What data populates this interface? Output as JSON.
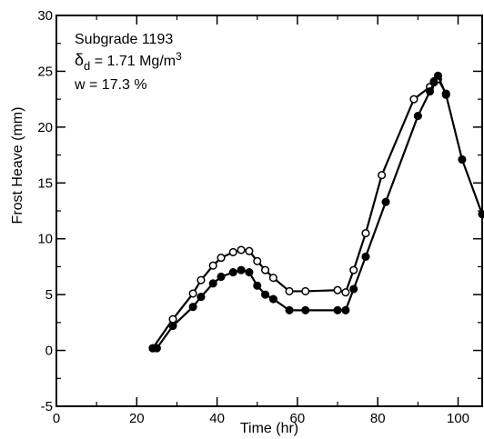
{
  "chart_data": {
    "type": "line",
    "title": "",
    "xlabel": "Time (hr)",
    "ylabel": "Frost Heave (mm)",
    "xlim": [
      0,
      106
    ],
    "ylim": [
      -5,
      30
    ],
    "x_ticks": [
      0,
      20,
      40,
      60,
      80,
      100
    ],
    "y_ticks": [
      -5,
      0,
      5,
      10,
      15,
      20,
      25,
      30
    ],
    "x_tick_labels": [
      "0",
      "20",
      "40",
      "60",
      "80",
      "100"
    ],
    "y_tick_labels": [
      "-5",
      "0",
      "5",
      "10",
      "15",
      "20",
      "25",
      "30"
    ],
    "grid": false,
    "legend": "none",
    "annotations": {
      "line1": "Subgrade 1193",
      "line2_symbol": "δ",
      "line2_sub": "d",
      "line2_text": " = 1.71 Mg/m",
      "line2_sup": "3",
      "line3": "w = 17.3 %"
    },
    "series": [
      {
        "marker": "open-circle",
        "x": [
          24,
          29,
          34,
          36,
          39,
          41,
          44,
          46,
          48,
          50,
          52,
          54,
          58,
          62,
          70,
          72,
          74,
          77,
          81,
          89,
          93,
          94,
          95,
          97
        ],
        "y": [
          0.2,
          2.8,
          5.1,
          6.3,
          7.6,
          8.3,
          8.8,
          9.0,
          8.9,
          8.0,
          7.2,
          6.5,
          5.3,
          5.3,
          5.4,
          5.2,
          7.2,
          10.5,
          15.7,
          22.5,
          23.6,
          24.1,
          24.3,
          23.0
        ]
      },
      {
        "marker": "filled-circle",
        "x": [
          24,
          25,
          29,
          34,
          36,
          39,
          41,
          44,
          46,
          48,
          50,
          52,
          54,
          58,
          62,
          70,
          72,
          74,
          77,
          82,
          90,
          93,
          94,
          95,
          97,
          101,
          106
        ],
        "y": [
          0.2,
          0.2,
          2.2,
          3.9,
          4.8,
          6.0,
          6.6,
          7.0,
          7.2,
          7.0,
          5.8,
          5.0,
          4.6,
          3.6,
          3.6,
          3.6,
          3.6,
          5.5,
          8.4,
          13.3,
          21.0,
          23.2,
          24.0,
          24.6,
          22.9,
          17.1,
          12.2
        ]
      }
    ]
  }
}
